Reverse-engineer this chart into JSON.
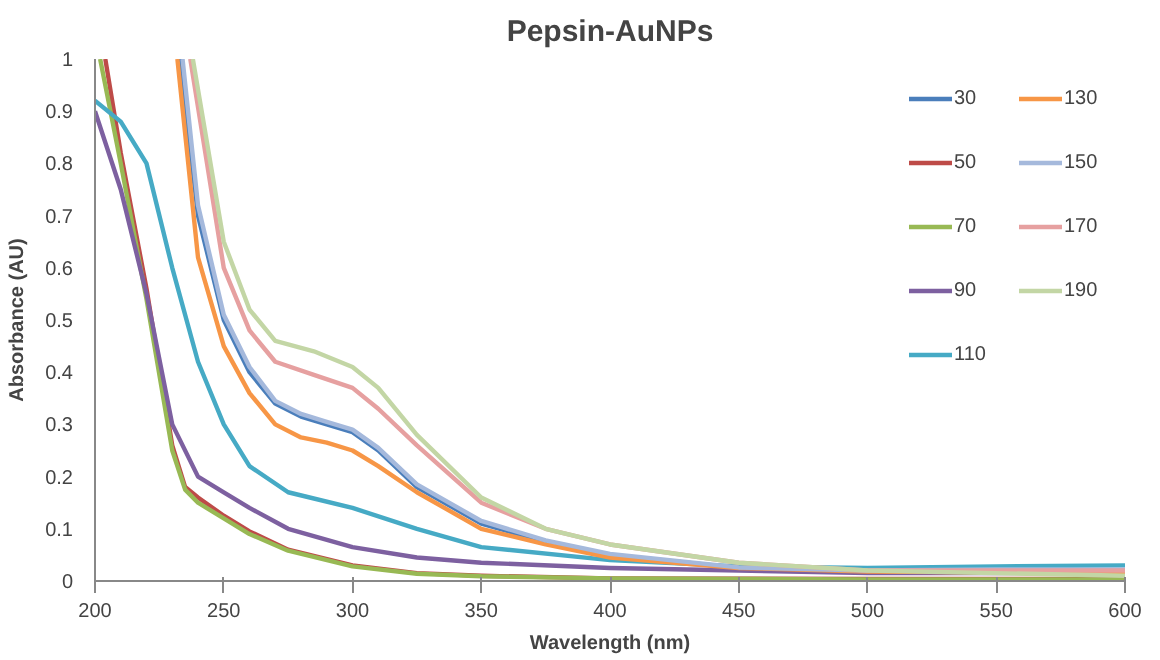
{
  "chart_data": {
    "type": "line",
    "title": "Pepsin-AuNPs",
    "xlabel": "Wavelength (nm)",
    "ylabel": "Absorbance (AU)",
    "xlim": [
      200,
      600
    ],
    "xticks": [
      200,
      250,
      300,
      350,
      400,
      450,
      500,
      550,
      600
    ],
    "ylim": [
      0,
      1
    ],
    "yticks": [
      0,
      0.1,
      0.2,
      0.3,
      0.4,
      0.5,
      0.6,
      0.7,
      0.8,
      0.9,
      1
    ],
    "grid": false,
    "legend": "top right",
    "marker": "none",
    "line_style": "solid",
    "series": [
      {
        "name": "30",
        "color": "#4a7ebb",
        "x": [
          233,
          240,
          250,
          260,
          270,
          280,
          290,
          300,
          310,
          325,
          350,
          375,
          400,
          450,
          500,
          550,
          600
        ],
        "values": [
          1,
          0.7,
          0.5,
          0.4,
          0.34,
          0.315,
          0.3,
          0.285,
          0.25,
          0.18,
          0.11,
          0.075,
          0.05,
          0.025,
          0.018,
          0.02,
          0.02
        ]
      },
      {
        "name": "50",
        "color": "#be4b48",
        "x": [
          204,
          210,
          220,
          230,
          235,
          240,
          250,
          260,
          275,
          300,
          325,
          350,
          400,
          500,
          600
        ],
        "values": [
          1,
          0.82,
          0.56,
          0.26,
          0.18,
          0.16,
          0.125,
          0.095,
          0.06,
          0.03,
          0.015,
          0.01,
          0.005,
          0.004,
          0.004
        ]
      },
      {
        "name": "70",
        "color": "#98b954",
        "x": [
          202,
          210,
          220,
          230,
          235,
          240,
          250,
          260,
          275,
          300,
          325,
          350,
          400,
          500,
          600
        ],
        "values": [
          1,
          0.8,
          0.54,
          0.25,
          0.175,
          0.15,
          0.12,
          0.09,
          0.058,
          0.028,
          0.014,
          0.009,
          0.005,
          0.003,
          0.003
        ]
      },
      {
        "name": "90",
        "color": "#7d60a0",
        "x": [
          200,
          210,
          220,
          230,
          240,
          250,
          260,
          275,
          300,
          325,
          350,
          400,
          450,
          500,
          600
        ],
        "values": [
          0.9,
          0.75,
          0.55,
          0.3,
          0.2,
          0.17,
          0.14,
          0.1,
          0.065,
          0.045,
          0.035,
          0.025,
          0.02,
          0.015,
          0.015
        ]
      },
      {
        "name": "110",
        "color": "#46aac5",
        "x": [
          200,
          210,
          220,
          230,
          240,
          250,
          260,
          275,
          300,
          325,
          350,
          400,
          450,
          500,
          550,
          600
        ],
        "values": [
          0.92,
          0.88,
          0.8,
          0.6,
          0.42,
          0.3,
          0.22,
          0.17,
          0.14,
          0.1,
          0.065,
          0.04,
          0.028,
          0.025,
          0.028,
          0.03
        ]
      },
      {
        "name": "130",
        "color": "#f79646",
        "x": [
          232,
          240,
          250,
          260,
          270,
          280,
          290,
          300,
          310,
          325,
          350,
          375,
          400,
          450,
          500,
          600
        ],
        "values": [
          1,
          0.62,
          0.45,
          0.36,
          0.3,
          0.275,
          0.265,
          0.25,
          0.22,
          0.17,
          0.1,
          0.07,
          0.045,
          0.025,
          0.018,
          0.015
        ]
      },
      {
        "name": "150",
        "color": "#a5b9dc",
        "x": [
          234,
          240,
          250,
          260,
          270,
          280,
          290,
          300,
          310,
          325,
          350,
          375,
          400,
          450,
          500,
          550,
          600
        ],
        "values": [
          1,
          0.72,
          0.51,
          0.41,
          0.345,
          0.32,
          0.305,
          0.29,
          0.255,
          0.185,
          0.115,
          0.078,
          0.052,
          0.026,
          0.02,
          0.022,
          0.022
        ]
      },
      {
        "name": "170",
        "color": "#e6a0a0",
        "x": [
          237,
          250,
          260,
          270,
          285,
          300,
          310,
          325,
          350,
          375,
          400,
          450,
          500,
          600
        ],
        "values": [
          1,
          0.6,
          0.48,
          0.42,
          0.395,
          0.37,
          0.33,
          0.26,
          0.15,
          0.1,
          0.07,
          0.035,
          0.02,
          0.02
        ]
      },
      {
        "name": "190",
        "color": "#c3d6a5",
        "x": [
          238,
          250,
          260,
          270,
          285,
          300,
          310,
          325,
          350,
          375,
          400,
          450,
          500,
          600
        ],
        "values": [
          1,
          0.65,
          0.52,
          0.46,
          0.44,
          0.41,
          0.37,
          0.28,
          0.16,
          0.1,
          0.07,
          0.035,
          0.02,
          0.01
        ]
      }
    ]
  }
}
